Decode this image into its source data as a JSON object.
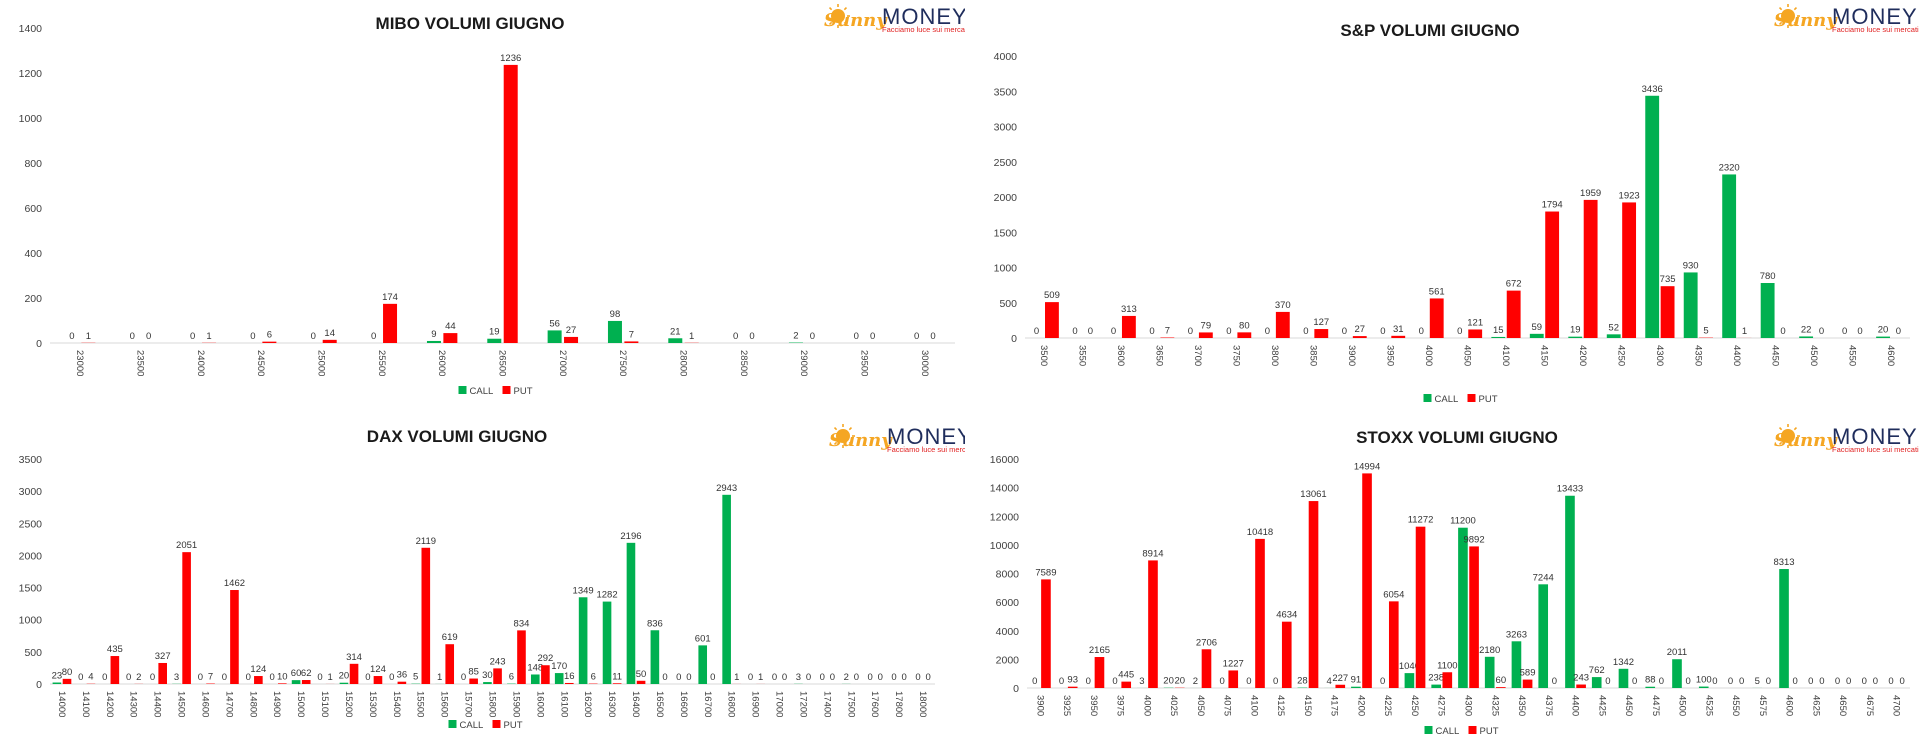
{
  "colors": {
    "call": "#00b050",
    "put": "#ff0000",
    "logo_orange": "#f5a623",
    "logo_blue": "#1f2d5c",
    "logo_red": "#e02020"
  },
  "logo": {
    "sunny": "Sunny",
    "money": "MONEY",
    "tagline": "Facciamo luce sui mercati",
    "icon": "sun-icon"
  },
  "legend": {
    "call": "CALL",
    "put": "PUT"
  },
  "chart_data": [
    {
      "type": "bar",
      "title": "MIBO VOLUMI GIUGNO",
      "categories": [
        "23000",
        "23500",
        "24000",
        "24500",
        "25000",
        "25500",
        "26000",
        "26500",
        "27000",
        "27500",
        "28000",
        "28500",
        "29000",
        "29500",
        "30000"
      ],
      "series": [
        {
          "name": "CALL",
          "values": [
            0,
            0,
            0,
            0,
            0,
            0,
            9,
            19,
            56,
            98,
            21,
            0,
            2,
            0,
            0
          ]
        },
        {
          "name": "PUT",
          "values": [
            1,
            0,
            1,
            6,
            14,
            174,
            44,
            1236,
            27,
            7,
            1,
            0,
            0,
            0,
            0
          ]
        }
      ],
      "ylim": [
        0,
        1400
      ],
      "yticks": [
        0,
        200,
        400,
        600,
        800,
        1000,
        1200,
        1400
      ],
      "grid": false,
      "legend": "bottom"
    },
    {
      "type": "bar",
      "title": "S&P VOLUMI GIUGNO",
      "categories": [
        "3500",
        "3550",
        "3600",
        "3650",
        "3700",
        "3750",
        "3800",
        "3850",
        "3900",
        "3950",
        "4000",
        "4050",
        "4100",
        "4150",
        "4200",
        "4250",
        "4300",
        "4350",
        "4400",
        "4450",
        "4500",
        "4550",
        "4600"
      ],
      "series": [
        {
          "name": "CALL",
          "values": [
            0,
            0,
            0,
            0,
            0,
            0,
            0,
            0,
            0,
            0,
            0,
            0,
            15,
            59,
            19,
            52,
            3436,
            930,
            2320,
            780,
            22,
            0,
            20
          ]
        },
        {
          "name": "PUT",
          "values": [
            509,
            0,
            313,
            7,
            79,
            80,
            370,
            127,
            27,
            31,
            561,
            121,
            672,
            1794,
            1959,
            1923,
            735,
            5,
            1,
            0,
            0,
            0,
            0
          ]
        }
      ],
      "ylim": [
        0,
        4000
      ],
      "yticks": [
        0,
        500,
        1000,
        1500,
        2000,
        2500,
        3000,
        3500,
        4000
      ],
      "grid": false,
      "legend": "bottom"
    },
    {
      "type": "bar",
      "title": "DAX VOLUMI GIUGNO",
      "categories": [
        "14000",
        "14100",
        "14200",
        "14300",
        "14400",
        "14500",
        "14600",
        "14700",
        "14800",
        "14900",
        "15000",
        "15100",
        "15200",
        "15300",
        "15400",
        "15500",
        "15600",
        "15700",
        "15800",
        "15900",
        "16000",
        "16100",
        "16200",
        "16300",
        "16400",
        "16500",
        "16600",
        "16700",
        "16800",
        "16900",
        "17000",
        "17200",
        "17400",
        "17500",
        "17600",
        "17800",
        "18000"
      ],
      "series": [
        {
          "name": "CALL",
          "values": [
            23,
            0,
            0,
            0,
            0,
            3,
            0,
            0,
            0,
            0,
            60,
            0,
            20,
            0,
            0,
            5,
            1,
            0,
            30,
            6,
            148,
            170,
            1349,
            1282,
            2196,
            836,
            0,
            601,
            2943,
            0,
            0,
            3,
            0,
            2,
            0,
            0,
            0
          ]
        },
        {
          "name": "PUT",
          "values": [
            80,
            4,
            435,
            2,
            327,
            2051,
            7,
            1462,
            124,
            10,
            62,
            1,
            314,
            124,
            36,
            2119,
            619,
            85,
            243,
            834,
            292,
            16,
            6,
            11,
            50,
            0,
            0,
            0,
            1,
            1,
            0,
            0,
            0,
            0,
            0,
            0,
            0
          ]
        }
      ],
      "ylim": [
        0,
        3500
      ],
      "yticks": [
        0,
        500,
        1000,
        1500,
        2000,
        2500,
        3000,
        3500
      ],
      "grid": false,
      "legend": "bottom"
    },
    {
      "type": "bar",
      "title": "STOXX VOLUMI GIUGNO",
      "categories": [
        "3900",
        "3925",
        "3950",
        "3975",
        "4000",
        "4025",
        "4050",
        "4075",
        "4100",
        "4125",
        "4150",
        "4175",
        "4200",
        "4225",
        "4250",
        "4275",
        "4300",
        "4325",
        "4350",
        "4375",
        "4400",
        "4425",
        "4450",
        "4475",
        "4500",
        "4525",
        "4550",
        "4575",
        "4600",
        "4625",
        "4650",
        "4675",
        "4700"
      ],
      "series": [
        {
          "name": "CALL",
          "values": [
            0,
            0,
            0,
            0,
            3,
            20,
            2,
            0,
            0,
            0,
            28,
            4,
            91,
            0,
            1040,
            238,
            11200,
            2180,
            3263,
            7244,
            13433,
            762,
            1342,
            88,
            2011,
            100,
            0,
            5,
            8313,
            0,
            0,
            0,
            0
          ]
        },
        {
          "name": "PUT",
          "values": [
            7589,
            93,
            2165,
            445,
            8914,
            20,
            2706,
            1227,
            10418,
            4634,
            13061,
            227,
            14994,
            6054,
            11272,
            1100,
            9892,
            60,
            589,
            0,
            243,
            0,
            0,
            0,
            0,
            0,
            0,
            0,
            0,
            0,
            0,
            0,
            0
          ]
        }
      ],
      "ylim": [
        0,
        16000
      ],
      "yticks": [
        0,
        2000,
        4000,
        6000,
        8000,
        10000,
        12000,
        14000,
        16000
      ],
      "grid": false,
      "legend": "bottom"
    }
  ]
}
